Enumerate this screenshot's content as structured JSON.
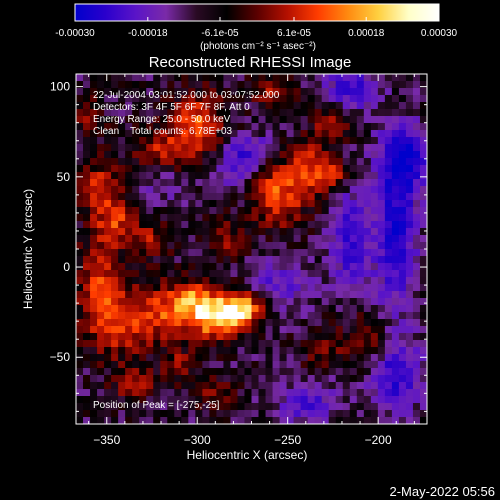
{
  "colorbar": {
    "tick_labels": [
      "-0.00030",
      "-0.00018",
      "-6.1e-05",
      "6.1e-05",
      "0.00018",
      "0.00030"
    ],
    "tick_values": [
      -0.0003,
      -0.00018,
      -6.1e-05,
      6.1e-05,
      0.00018,
      0.0003
    ],
    "range": [
      -0.0003,
      0.0003
    ],
    "units_label": "(photons cm⁻² s⁻¹ asec⁻²)",
    "colors": [
      "#0000cc",
      "#2a00cc",
      "#5a14c8",
      "#7a2aa8",
      "#2a0a24",
      "#000000",
      "#5a0000",
      "#b41000",
      "#ff3c00",
      "#ff8a10",
      "#ffd040",
      "#ffffc8",
      "#ffffff"
    ]
  },
  "chart_data": {
    "type": "heatmap",
    "title": "Reconstructed RHESSI Image",
    "xlabel": "Heliocentric X (arcsec)",
    "ylabel": "Heliocentric Y (arcsec)",
    "xlim": [
      -367,
      -173
    ],
    "ylim": [
      -87,
      107
    ],
    "x_ticks": [
      -350,
      -300,
      -250,
      -200
    ],
    "y_ticks": [
      -50,
      0,
      50,
      100
    ],
    "x_tick_labels": [
      "−350",
      "−300",
      "−250",
      "−200"
    ],
    "y_tick_labels": [
      "−50",
      "0",
      "50",
      "100"
    ],
    "annotations": [
      "22-Jul-2004 03:01:52.000 to 03:07:52.000",
      "Detectors: 3F 4F 5F 6F 7F 8F, Att 0",
      "Energy Range: 25.0 - 50.0 keV",
      "Clean    Total counts: 6.78E+03"
    ],
    "peak_label": "Position of Peak = [-275,-25]",
    "peak_position": [
      -275,
      -25
    ],
    "value_range": [
      -0.0003,
      0.0003
    ],
    "grid": false,
    "sources": [
      {
        "x": -276,
        "y": -23,
        "sx": 9,
        "sy": 7,
        "a": 1.0
      },
      {
        "x": -290,
        "y": -30,
        "sx": 10,
        "sy": 8,
        "a": 0.75
      },
      {
        "x": -300,
        "y": -18,
        "sx": 9,
        "sy": 8,
        "a": 0.65
      },
      {
        "x": -315,
        "y": -25,
        "sx": 10,
        "sy": 10,
        "a": 0.55
      },
      {
        "x": -340,
        "y": -30,
        "sx": 12,
        "sy": 14,
        "a": 0.6
      },
      {
        "x": -355,
        "y": -10,
        "sx": 8,
        "sy": 18,
        "a": 0.55
      },
      {
        "x": -345,
        "y": 25,
        "sx": 8,
        "sy": 10,
        "a": 0.55
      },
      {
        "x": -355,
        "y": 45,
        "sx": 8,
        "sy": 10,
        "a": 0.5
      },
      {
        "x": -300,
        "y": 80,
        "sx": 10,
        "sy": 12,
        "a": 0.65
      },
      {
        "x": -320,
        "y": 65,
        "sx": 12,
        "sy": 8,
        "a": 0.45
      },
      {
        "x": -255,
        "y": 40,
        "sx": 10,
        "sy": 12,
        "a": 0.7
      },
      {
        "x": -238,
        "y": 55,
        "sx": 7,
        "sy": 10,
        "a": 0.55
      },
      {
        "x": -225,
        "y": 50,
        "sx": 6,
        "sy": 6,
        "a": 0.55
      },
      {
        "x": -225,
        "y": 80,
        "sx": 7,
        "sy": 8,
        "a": 0.5
      },
      {
        "x": -258,
        "y": 98,
        "sx": 8,
        "sy": 6,
        "a": 0.45
      },
      {
        "x": -325,
        "y": 15,
        "sx": 7,
        "sy": 7,
        "a": 0.4
      },
      {
        "x": -285,
        "y": 15,
        "sx": 8,
        "sy": 8,
        "a": 0.35
      },
      {
        "x": -205,
        "y": -40,
        "sx": 8,
        "sy": 10,
        "a": 0.4
      },
      {
        "x": -230,
        "y": -45,
        "sx": 8,
        "sy": 8,
        "a": 0.35
      },
      {
        "x": -335,
        "y": -65,
        "sx": 8,
        "sy": 6,
        "a": 0.45
      },
      {
        "x": -310,
        "y": -55,
        "sx": 6,
        "sy": 6,
        "a": 0.4
      },
      {
        "x": -290,
        "y": -70,
        "sx": 8,
        "sy": 6,
        "a": 0.35
      },
      {
        "x": -360,
        "y": 85,
        "sx": 6,
        "sy": 8,
        "a": 0.35
      },
      {
        "x": -215,
        "y": 15,
        "sx": 8,
        "sy": 20,
        "a": -0.55
      },
      {
        "x": -190,
        "y": 20,
        "sx": 8,
        "sy": 30,
        "a": -0.7
      },
      {
        "x": -185,
        "y": 60,
        "sx": 10,
        "sy": 12,
        "a": -0.7
      },
      {
        "x": -215,
        "y": 98,
        "sx": 10,
        "sy": 8,
        "a": -0.6
      },
      {
        "x": -190,
        "y": -60,
        "sx": 10,
        "sy": 14,
        "a": -0.6
      },
      {
        "x": -255,
        "y": -10,
        "sx": 12,
        "sy": 10,
        "a": -0.4
      },
      {
        "x": -240,
        "y": -75,
        "sx": 12,
        "sy": 8,
        "a": -0.45
      },
      {
        "x": -280,
        "y": 55,
        "sx": 8,
        "sy": 8,
        "a": -0.4
      },
      {
        "x": -320,
        "y": 45,
        "sx": 8,
        "sy": 6,
        "a": -0.25
      },
      {
        "x": -270,
        "y": 65,
        "sx": 8,
        "sy": 6,
        "a": -0.4
      }
    ]
  },
  "footer": {
    "timestamp": "2-May-2022 05:56"
  }
}
